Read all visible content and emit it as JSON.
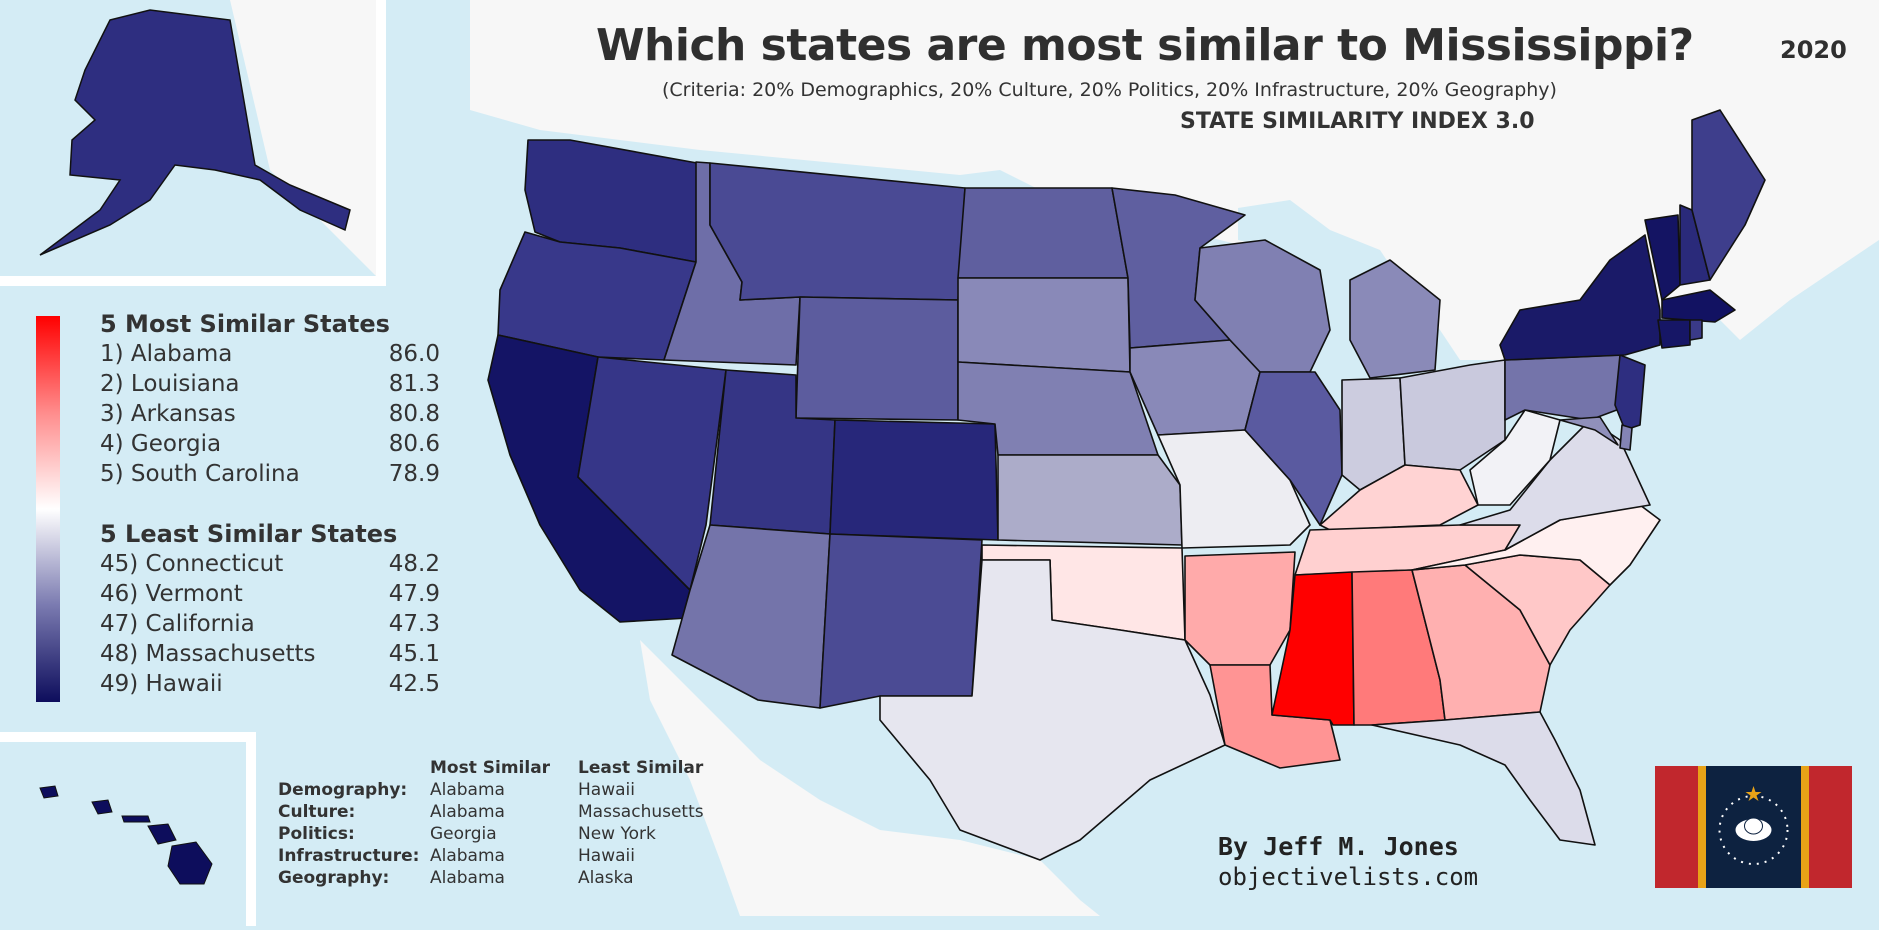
{
  "header": {
    "title": "Which states are most similar to Mississippi?",
    "year": "2020",
    "subtitle": "(Criteria: 20% Demographics, 20% Culture, 20% Politics, 20% Infrastructure, 20% Geography)",
    "index_label": "STATE SIMILARITY INDEX 3.0"
  },
  "most_similar": {
    "heading": "5 Most Similar States",
    "items": [
      {
        "rank": "1) Alabama",
        "score": "86.0"
      },
      {
        "rank": "2) Louisiana",
        "score": "81.3"
      },
      {
        "rank": "3) Arkansas",
        "score": "80.8"
      },
      {
        "rank": "4) Georgia",
        "score": "80.6"
      },
      {
        "rank": "5) South Carolina",
        "score": "78.9"
      }
    ]
  },
  "least_similar": {
    "heading": "5 Least Similar States",
    "items": [
      {
        "rank": "45) Connecticut",
        "score": "48.2"
      },
      {
        "rank": "46) Vermont",
        "score": "47.9"
      },
      {
        "rank": "47) California",
        "score": "47.3"
      },
      {
        "rank": "48) Massachusetts",
        "score": "45.1"
      },
      {
        "rank": "49) Hawaii",
        "score": "42.5"
      }
    ]
  },
  "categories": {
    "header_most": "Most Similar",
    "header_least": "Least Similar",
    "rows": [
      {
        "label": "Demography:",
        "most": "Alabama",
        "least": "Hawaii"
      },
      {
        "label": "Culture:",
        "most": "Alabama",
        "least": "Massachusetts"
      },
      {
        "label": "Politics:",
        "most": "Georgia",
        "least": "New York"
      },
      {
        "label": "Infrastructure:",
        "most": "Alabama",
        "least": "Hawaii"
      },
      {
        "label": "Geography:",
        "most": "Alabama",
        "least": "Alaska"
      }
    ]
  },
  "credits": {
    "author": "By Jeff M. Jones",
    "website": "objectivelists.com"
  },
  "colors": {
    "water": "#d4ecf5",
    "land": "#f7f7f7",
    "most_similar": "#ff0000",
    "least_similar": "#0d0d5c",
    "flag_red": "#c1272d",
    "flag_gold": "#e8a317",
    "flag_navy": "#0d2240"
  }
}
